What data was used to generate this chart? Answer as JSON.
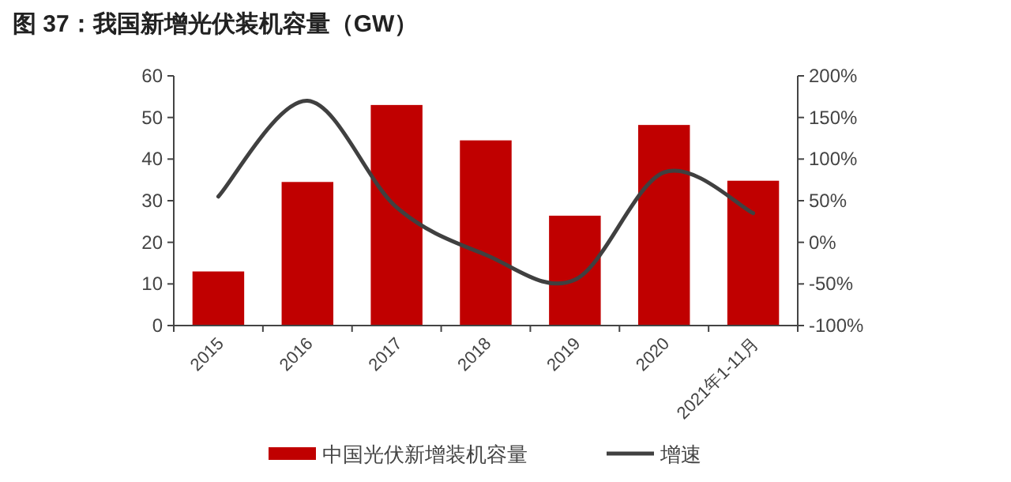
{
  "chart_data": {
    "type": "bar",
    "title": "图 37：我国新增光伏装机容量（GW）",
    "categories": [
      "2015",
      "2016",
      "2017",
      "2018",
      "2019",
      "2020",
      "2021年1-11月"
    ],
    "series": [
      {
        "name": "中国光伏新增装机容量",
        "color": "#c00000",
        "values": [
          13,
          34.5,
          53,
          44.5,
          26.4,
          48.2,
          34.8
        ]
      },
      {
        "name": "增速",
        "type": "line",
        "axis": "y2",
        "color": "#404040",
        "values": [
          55,
          170,
          42,
          -15,
          -45,
          84,
          35
        ]
      }
    ],
    "ylim": [
      0,
      60
    ],
    "yticks": [
      0,
      10,
      20,
      30,
      40,
      50,
      60
    ],
    "y2lim": [
      -100,
      200
    ],
    "y2ticks": [
      {
        "value": -100,
        "label": "-100%"
      },
      {
        "value": -50,
        "label": "-50%"
      },
      {
        "value": 0,
        "label": "0%"
      },
      {
        "value": 50,
        "label": "50%"
      },
      {
        "value": 100,
        "label": "100%"
      },
      {
        "value": 150,
        "label": "150%"
      },
      {
        "value": 200,
        "label": "200%"
      }
    ],
    "legend": "bottom",
    "grid": false
  }
}
